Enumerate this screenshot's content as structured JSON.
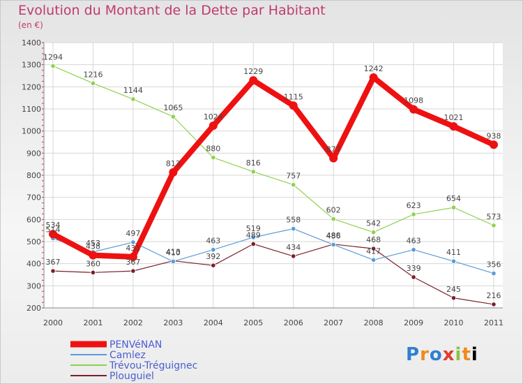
{
  "header": {
    "title": "Evolution du Montant de la Dette par Habitant",
    "unit": "(en €)"
  },
  "logo": {
    "letters": [
      "P",
      "r",
      "o",
      "x",
      "i",
      "t",
      "i"
    ]
  },
  "chart_data": {
    "type": "line",
    "title": "Evolution du Montant de la Dette par Habitant",
    "subtitle": "(en €)",
    "x": [
      "2000",
      "2001",
      "2002",
      "2003",
      "2004",
      "2005",
      "2006",
      "2007",
      "2008",
      "2009",
      "2010",
      "2011"
    ],
    "ylim": [
      200,
      1400
    ],
    "yticks": [
      "200",
      "300",
      "400",
      "500",
      "600",
      "700",
      "800",
      "900",
      "1000",
      "1100",
      "1200",
      "1300",
      "1400"
    ],
    "grid": true,
    "legend": "bottom-left",
    "series": [
      {
        "name": "PENVéNAN",
        "color": "#ee1111",
        "values": [
          534,
          438,
          431,
          813,
          1024,
          1229,
          1115,
          877,
          1242,
          1098,
          1021,
          938
        ],
        "labels": [
          "534",
          "438",
          "431",
          "813",
          "1024",
          "1229",
          "1115",
          "877",
          "1242",
          "1098",
          "1021",
          "938"
        ]
      },
      {
        "name": "Camlez",
        "color": "#5b9bd5",
        "values": [
          514,
          453,
          497,
          410,
          463,
          519,
          558,
          486,
          417,
          463,
          411,
          356
        ],
        "labels": [
          "514",
          "453",
          "497",
          "410",
          "463",
          "519",
          "558",
          "486",
          "417",
          "463",
          "411",
          "356"
        ]
      },
      {
        "name": "Trévou-Tréguignec",
        "color": "#8fd14f",
        "values": [
          1294,
          1216,
          1144,
          1065,
          880,
          816,
          757,
          602,
          542,
          623,
          654,
          573
        ],
        "labels": [
          "1294",
          "1216",
          "1144",
          "1065",
          "880",
          "816",
          "757",
          "602",
          "542",
          "623",
          "654",
          "573"
        ]
      },
      {
        "name": "Plouguiel",
        "color": "#7a1f2b",
        "values": [
          367,
          360,
          367,
          413,
          392,
          489,
          434,
          488,
          468,
          339,
          245,
          216
        ],
        "labels": [
          "367",
          "360",
          "367",
          "413",
          "392",
          "489",
          "434",
          "488",
          "468",
          "339",
          "245",
          "216"
        ]
      }
    ]
  }
}
